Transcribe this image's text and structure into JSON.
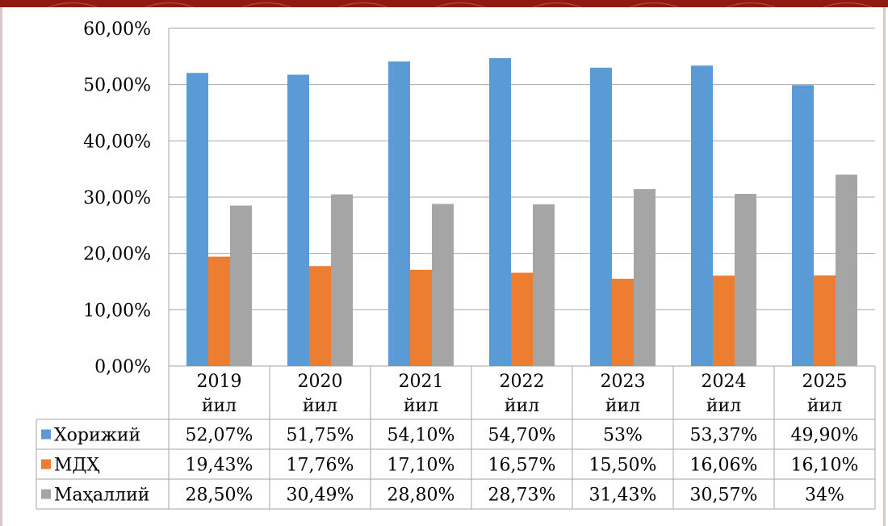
{
  "chart_data": {
    "type": "bar",
    "categories": [
      "2019 йил",
      "2020 йил",
      "2021 йил",
      "2022 йил",
      "2023 йил",
      "2024 йил",
      "2025 йил"
    ],
    "category_lines": [
      [
        "2019",
        "йил"
      ],
      [
        "2020",
        "йил"
      ],
      [
        "2021",
        "йил"
      ],
      [
        "2022",
        "йил"
      ],
      [
        "2023",
        "йил"
      ],
      [
        "2024",
        "йил"
      ],
      [
        "2025",
        "йил"
      ]
    ],
    "series": [
      {
        "name": "Хорижий",
        "color": "#5b9bd5",
        "values": [
          52.07,
          51.75,
          54.1,
          54.7,
          53.0,
          53.37,
          49.9
        ],
        "labels": [
          "52,07%",
          "51,75%",
          "54,10%",
          "54,70%",
          "53%",
          "53,37%",
          "49,90%"
        ]
      },
      {
        "name": "МДҲ",
        "color": "#ed7d31",
        "values": [
          19.43,
          17.76,
          17.1,
          16.57,
          15.5,
          16.06,
          16.1
        ],
        "labels": [
          "19,43%",
          "17,76%",
          "17,10%",
          "16,57%",
          "15,50%",
          "16,06%",
          "16,10%"
        ]
      },
      {
        "name": "Маҳаллий",
        "color": "#a5a5a5",
        "values": [
          28.5,
          30.49,
          28.8,
          28.73,
          31.43,
          30.57,
          34.0
        ],
        "labels": [
          "28,50%",
          "30,49%",
          "28,80%",
          "28,73%",
          "31,43%",
          "30,57%",
          "34%"
        ]
      }
    ],
    "y_ticks": [
      0,
      10,
      20,
      30,
      40,
      50,
      60
    ],
    "y_tick_labels": [
      "0,00%",
      "10,00%",
      "20,00%",
      "30,00%",
      "40,00%",
      "50,00%",
      "60,00%"
    ],
    "ylim": [
      0,
      60
    ],
    "grid": true,
    "legend_placement": "data-table-left",
    "title": "",
    "xlabel": "",
    "ylabel": ""
  }
}
